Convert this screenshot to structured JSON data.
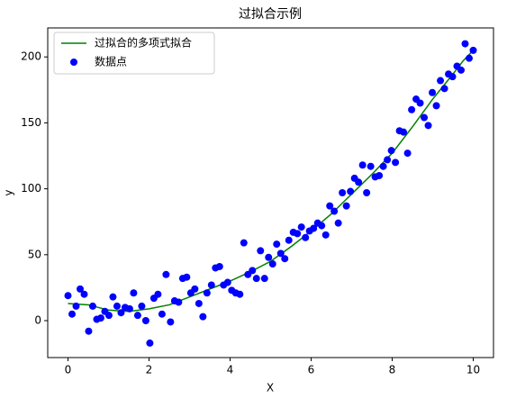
{
  "chart_data": {
    "type": "scatter",
    "title": "过拟合示例",
    "x_label": "X",
    "y_label": "y",
    "xlim": [
      -0.5,
      10.5
    ],
    "xticks": [
      0,
      2,
      4,
      6,
      8,
      10
    ],
    "ylim": [
      -28,
      222
    ],
    "yticks": [
      0,
      50,
      100,
      150,
      200
    ],
    "grid": false,
    "legend": "upper left",
    "series": [
      {
        "name": "过拟合的多项式拟合",
        "color": "#008000",
        "type": "line",
        "x": [
          0,
          0.5,
          1,
          1.5,
          2,
          2.5,
          3,
          3.5,
          4,
          4.5,
          5,
          5.5,
          6,
          6.5,
          7,
          7.5,
          8,
          8.5,
          9,
          9.5,
          9.75,
          10
        ],
        "values": [
          13,
          12,
          8,
          7,
          9,
          12,
          18,
          24,
          30,
          37,
          45,
          56,
          68,
          81,
          96,
          111,
          127,
          147,
          168,
          187,
          197,
          205
        ]
      },
      {
        "name": "数据点",
        "color": "#0000ff",
        "type": "scatter",
        "x": [
          0,
          0.1,
          0.2,
          0.3,
          0.4,
          0.51,
          0.61,
          0.71,
          0.81,
          0.91,
          1.01,
          1.11,
          1.21,
          1.31,
          1.41,
          1.52,
          1.62,
          1.72,
          1.82,
          1.92,
          2.02,
          2.12,
          2.22,
          2.32,
          2.42,
          2.53,
          2.63,
          2.73,
          2.83,
          2.93,
          3.03,
          3.13,
          3.23,
          3.33,
          3.43,
          3.54,
          3.64,
          3.74,
          3.84,
          3.94,
          4.04,
          4.14,
          4.24,
          4.34,
          4.44,
          4.55,
          4.65,
          4.75,
          4.85,
          4.95,
          5.05,
          5.15,
          5.25,
          5.35,
          5.45,
          5.56,
          5.66,
          5.76,
          5.86,
          5.96,
          6.06,
          6.16,
          6.26,
          6.36,
          6.46,
          6.57,
          6.67,
          6.77,
          6.87,
          6.97,
          7.07,
          7.17,
          7.27,
          7.37,
          7.47,
          7.58,
          7.68,
          7.78,
          7.88,
          7.98,
          8.08,
          8.18,
          8.28,
          8.38,
          8.48,
          8.59,
          8.69,
          8.79,
          8.89,
          8.99,
          9.09,
          9.19,
          9.29,
          9.39,
          9.49,
          9.6,
          9.7,
          9.8,
          9.9,
          10
        ],
        "values": [
          19,
          5,
          11,
          24,
          20,
          -8,
          11,
          1,
          2,
          7,
          4,
          18,
          11,
          6,
          10,
          9,
          21,
          4,
          11,
          0,
          -17,
          17,
          20,
          5,
          35,
          -1,
          15,
          14,
          32,
          33,
          21,
          24,
          13,
          3,
          21,
          27,
          40,
          41,
          27,
          29,
          23,
          21,
          20,
          59,
          35,
          38,
          32,
          53,
          32,
          48,
          43,
          58,
          51,
          47,
          61,
          67,
          66,
          71,
          63,
          68,
          70,
          74,
          72,
          65,
          87,
          83,
          74,
          97,
          87,
          98,
          108,
          105,
          118,
          97,
          117,
          109,
          110,
          117,
          122,
          129,
          120,
          144,
          143,
          127,
          160,
          168,
          165,
          154,
          148,
          173,
          163,
          182,
          176,
          187,
          185,
          193,
          190,
          210,
          199,
          205
        ]
      }
    ]
  }
}
